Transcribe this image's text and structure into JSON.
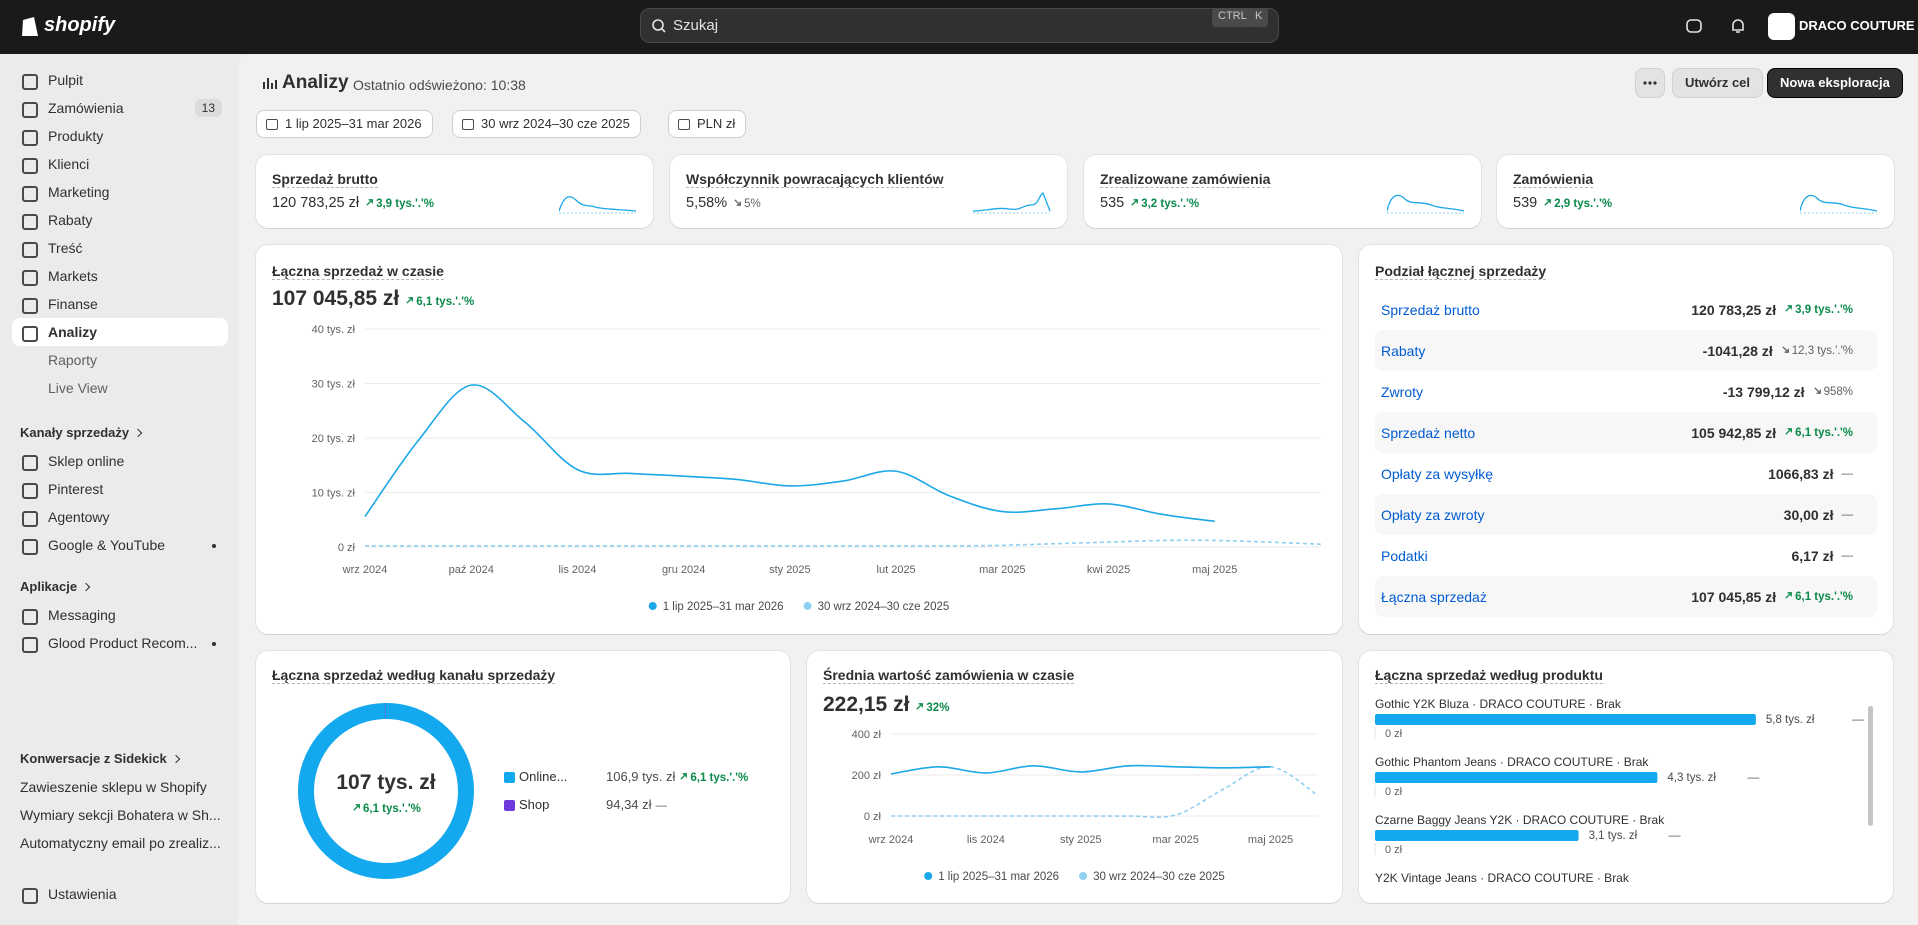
{
  "topbar": {
    "logo": "shopify",
    "search": "Szukaj",
    "shortcut": [
      "CTRL",
      "K"
    ],
    "store": "DRACO COUTURE"
  },
  "sidebar": {
    "nav": [
      {
        "label": "Pulpit"
      },
      {
        "label": "Zamówienia",
        "badge": "13"
      },
      {
        "label": "Produkty"
      },
      {
        "label": "Klienci"
      },
      {
        "label": "Marketing"
      },
      {
        "label": "Rabaty"
      },
      {
        "label": "Treść"
      },
      {
        "label": "Markets"
      },
      {
        "label": "Finanse"
      },
      {
        "label": "Analizy",
        "active": true
      }
    ],
    "sub": [
      "Raporty",
      "Live View"
    ],
    "channels_title": "Kanały sprzedaży",
    "channels": [
      {
        "label": "Sklep online"
      },
      {
        "label": "Pinterest"
      },
      {
        "label": "Agentowy"
      },
      {
        "label": "Google & YouTube",
        "dot": true
      }
    ],
    "apps_title": "Aplikacje",
    "apps": [
      {
        "label": "Messaging"
      },
      {
        "label": "Glood Product Recom...",
        "dot": true
      }
    ],
    "sidekick_title": "Konwersacje z Sidekick",
    "sidekick": [
      "Zawieszenie sklepu w Shopify",
      "Wymiary sekcji Bohatera w Sh...",
      "Automatyczny email po zrealiz..."
    ],
    "settings": "Ustawienia"
  },
  "header": {
    "title": "Analizy",
    "refreshed": "Ostatnio odświeżono: 10:38",
    "buttons": [
      "Utwórz cel",
      "Nowa eksploracja"
    ],
    "filters": [
      "1 lip 2025–31 mar 2026",
      "30 wrz 2024–30 cze 2025",
      "PLN zł"
    ]
  },
  "kpis": [
    {
      "label": "Sprzedaż brutto",
      "value": "120 783,25 zł",
      "change": "3,9 tys.'.'%",
      "dir": "up"
    },
    {
      "label": "Współczynnik powracających klientów",
      "value": "5,58%",
      "change": "5%",
      "dir": "down"
    },
    {
      "label": "Zrealizowane zamówienia",
      "value": "535",
      "change": "3,2 tys.'.'%",
      "dir": "up"
    },
    {
      "label": "Zamówienia",
      "value": "539",
      "change": "2,9 tys.'.'%",
      "dir": "up"
    }
  ],
  "sales_chart": {
    "type": "line",
    "title": "Łączna sprzedaż w czasie",
    "total": "107 045,85 zł",
    "change": "6,1 tys.'.'%",
    "dir": "up",
    "categories": [
      "wrz 2024",
      null,
      "paź 2024",
      null,
      "lis 2024",
      null,
      "gru 2024",
      null,
      "sty 2025",
      null,
      "lut 2025",
      null,
      "mar 2025",
      null,
      "kwi 2025",
      null,
      "maj 2025",
      null,
      null
    ],
    "series": [
      {
        "name": "1 lip 2025–31 mar 2026",
        "color": "#1ba7e8",
        "values": [
          5600,
          19500,
          29700,
          23000,
          14200,
          13500,
          13000,
          12400,
          11200,
          12100,
          13900,
          9400,
          6500,
          7000,
          7900,
          6000,
          4700,
          null,
          null
        ]
      },
      {
        "name": "30 wrz 2024–30 cze 2025",
        "color": "#8fd0f0",
        "dashed": true,
        "values": [
          200,
          200,
          200,
          200,
          200,
          200,
          200,
          200,
          200,
          200,
          200,
          200,
          300,
          600,
          900,
          1200,
          1200,
          900,
          500
        ]
      }
    ],
    "ylim": [
      0,
      40000
    ],
    "yticks": [
      {
        "value": 0,
        "label": "0 zł"
      },
      {
        "value": 10000,
        "label": "10 tys. zł"
      },
      {
        "value": 20000,
        "label": "20 tys. zł"
      },
      {
        "value": 30000,
        "label": "30 tys. zł"
      },
      {
        "value": 40000,
        "label": "40 tys. zł"
      }
    ],
    "grid": true
  },
  "breakdown": {
    "title": "Podział łącznej sprzedaży",
    "rows": [
      {
        "label": "Sprzedaż brutto",
        "value": "120 783,25 zł",
        "change": "3,9 tys.'.'%",
        "dir": "up"
      },
      {
        "label": "Rabaty",
        "value": "-1041,28 zł",
        "change": "12,3 tys.'.'%",
        "dir": "down"
      },
      {
        "label": "Zwroty",
        "value": "-13 799,12 zł",
        "change": "958%",
        "dir": "down"
      },
      {
        "label": "Sprzedaż netto",
        "value": "105 942,85 zł",
        "change": "6,1 tys.'.'%",
        "dir": "up"
      },
      {
        "label": "Opłaty za wysyłkę",
        "value": "1066,83 zł",
        "change": "—"
      },
      {
        "label": "Opłaty za zwroty",
        "value": "30,00 zł",
        "change": "—"
      },
      {
        "label": "Podatki",
        "value": "6,17 zł",
        "change": "—"
      },
      {
        "label": "Łączna sprzedaż",
        "value": "107 045,85 zł",
        "change": "6,1 tys.'.'%",
        "dir": "up"
      }
    ]
  },
  "channel_chart": {
    "type": "pie",
    "title": "Łączna sprzedaż według kanału sprzedaży",
    "center": "107 tys. zł",
    "change": "6,1 tys.'.'%",
    "dir": "up",
    "segments": [
      {
        "name": "Online...",
        "color": "#14a8ef",
        "value": 106900,
        "value_label": "106,9 tys. zł",
        "change": "6,1 tys.'.'%",
        "dir": "up"
      },
      {
        "name": "Shop",
        "color": "#6e3bdc",
        "value": 94.34,
        "value_label": "94,34 zł",
        "change": "—"
      }
    ]
  },
  "aov_chart": {
    "type": "line",
    "title": "Średnia wartość zamówienia w czasie",
    "total": "222,15 zł",
    "change": "32%",
    "dir": "up",
    "categories": [
      "wrz 2024",
      null,
      "lis 2024",
      null,
      "sty 2025",
      null,
      "mar 2025",
      null,
      "maj 2025",
      null
    ],
    "series": [
      {
        "name": "1 lip 2025–31 mar 2026",
        "color": "#1ba7e8",
        "values": [
          205,
          240,
          210,
          245,
          215,
          245,
          240,
          235,
          240,
          null
        ]
      },
      {
        "name": "30 wrz 2024–30 cze 2025",
        "color": "#8fd0f0",
        "dashed": true,
        "values": [
          0,
          0,
          0,
          0,
          0,
          0,
          5,
          130,
          240,
          100
        ]
      }
    ],
    "ylim": [
      0,
      400
    ],
    "yticks": [
      {
        "value": 0,
        "label": "0 zł"
      },
      {
        "value": 200,
        "label": "200 zł"
      },
      {
        "value": 400,
        "label": "400 zł"
      }
    ],
    "grid": true
  },
  "product_chart": {
    "type": "bar",
    "title": "Łączna sprzedaż według produktu",
    "xlim": [
      0,
      6000
    ],
    "items": [
      {
        "name": "Gothic Y2K Bluza · DRACO COUTURE · Brak",
        "value": 5800,
        "value_label": "5,8 tys. zł",
        "prior_label": "0 zł",
        "change": "—"
      },
      {
        "name": "Gothic Phantom Jeans · DRACO COUTURE · Brak",
        "value": 4300,
        "value_label": "4,3 tys. zł",
        "prior_label": "0 zł",
        "change": "—"
      },
      {
        "name": "Czarne Baggy Jeans Y2K · DRACO COUTURE · Brak",
        "value": 3100,
        "value_label": "3,1 tys. zł",
        "prior_label": "0 zł",
        "change": "—"
      },
      {
        "name": "Y2K Vintage Jeans · DRACO COUTURE · Brak"
      }
    ]
  }
}
